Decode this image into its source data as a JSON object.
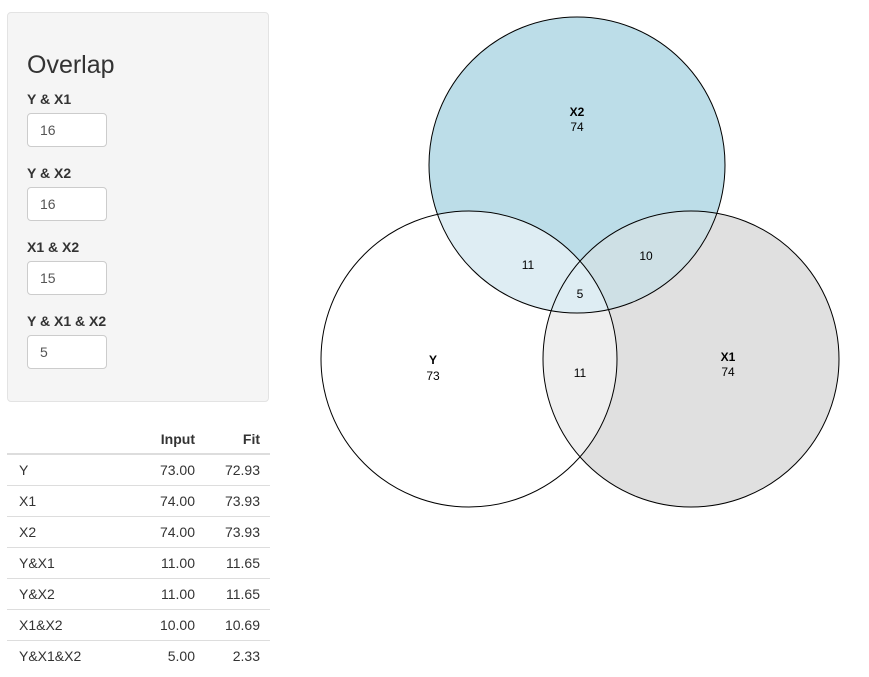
{
  "overlap_panel": {
    "title": "Overlap",
    "fields": [
      {
        "label": "Y & X1",
        "value": "16"
      },
      {
        "label": "Y & X2",
        "value": "16"
      },
      {
        "label": "X1 & X2",
        "value": "15"
      },
      {
        "label": "Y & X1 & X2",
        "value": "5"
      }
    ]
  },
  "results_table": {
    "headers": [
      "",
      "Input",
      "Fit"
    ],
    "rows": [
      {
        "name": "Y",
        "input": "73.00",
        "fit": "72.93"
      },
      {
        "name": "X1",
        "input": "74.00",
        "fit": "73.93"
      },
      {
        "name": "X2",
        "input": "74.00",
        "fit": "73.93"
      },
      {
        "name": "Y&X1",
        "input": "11.00",
        "fit": "11.65"
      },
      {
        "name": "Y&X2",
        "input": "11.00",
        "fit": "11.65"
      },
      {
        "name": "X1&X2",
        "input": "10.00",
        "fit": "10.69"
      },
      {
        "name": "Y&X1&X2",
        "input": "5.00",
        "fit": "2.33"
      }
    ]
  },
  "venn": {
    "sets": [
      {
        "name": "X2",
        "count": "74",
        "color": "#bcdde8"
      },
      {
        "name": "Y",
        "count": "73",
        "color": "#ffffff"
      },
      {
        "name": "X1",
        "count": "74",
        "color": "#e0e0e0"
      }
    ],
    "regions": {
      "y_x2": "11",
      "x1_x2": "10",
      "y_x1": "11",
      "y_x1_x2": "5"
    },
    "colors": {
      "y_x2": "#deedf3",
      "x1_x2": "#cee0e5",
      "y_x1": "#efefef",
      "y_x1_x2": "#deedf3",
      "outline": "#000000"
    }
  }
}
